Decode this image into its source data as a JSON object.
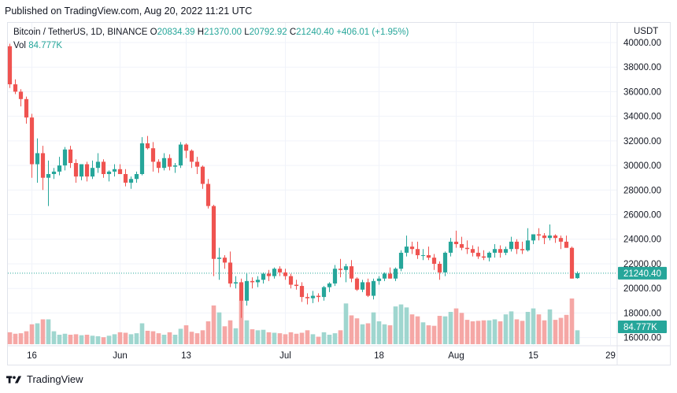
{
  "header": {
    "published": "Published on TradingView.com, Aug 20, 2022 11:21 UTC"
  },
  "legend": {
    "symbol": "Bitcoin / TetherUS, 1D, BINANCE",
    "o_label": "O",
    "o": "20834.39",
    "h_label": "H",
    "h": "21370.00",
    "l_label": "L",
    "l": "20792.92",
    "c_label": "C",
    "c": "21240.40",
    "change": "+406.01 (+1.95%)",
    "vol_label": "Vol",
    "vol": "84.777K"
  },
  "footer": {
    "brand": "TradingView"
  },
  "colors": {
    "up": "#26a69a",
    "down": "#ef5350",
    "up_vol": "#9fd6cf",
    "down_vol": "#f5a7a5",
    "grid": "#f0f3fa",
    "price_tag": "#26a69a"
  },
  "chart_data": {
    "type": "candlestick",
    "currency_label": "USDT",
    "y_ticks": [
      "40000.00",
      "38000.00",
      "36000.00",
      "34000.00",
      "32000.00",
      "30000.00",
      "28000.00",
      "26000.00",
      "24000.00",
      "22000.00",
      "20000.00",
      "18000.00",
      "16000.00"
    ],
    "ylim": [
      15400,
      41600
    ],
    "x_ticks": [
      {
        "label": "16",
        "index": 4
      },
      {
        "label": "Jun",
        "index": 20
      },
      {
        "label": "13",
        "index": 32
      },
      {
        "label": "Jul",
        "index": 50
      },
      {
        "label": "18",
        "index": 67
      },
      {
        "label": "Aug",
        "index": 81
      },
      {
        "label": "15",
        "index": 95
      },
      {
        "label": "29",
        "index": 109
      }
    ],
    "last_price_label": "21240.40",
    "last_price": 21240.4,
    "volume_tag": "84.777K",
    "candles": [
      {
        "o": 39700,
        "h": 39900,
        "l": 36300,
        "c": 36600,
        "v": 120
      },
      {
        "o": 36600,
        "h": 37000,
        "l": 35800,
        "c": 36000,
        "v": 105
      },
      {
        "o": 36000,
        "h": 36200,
        "l": 34800,
        "c": 35400,
        "v": 110
      },
      {
        "o": 35400,
        "h": 35600,
        "l": 33400,
        "c": 33900,
        "v": 130
      },
      {
        "o": 33900,
        "h": 34200,
        "l": 29000,
        "c": 30100,
        "v": 200
      },
      {
        "o": 30100,
        "h": 32200,
        "l": 28600,
        "c": 31000,
        "v": 210
      },
      {
        "o": 31000,
        "h": 31600,
        "l": 28000,
        "c": 29000,
        "v": 250
      },
      {
        "o": 29000,
        "h": 30400,
        "l": 26700,
        "c": 29300,
        "v": 250
      },
      {
        "o": 29300,
        "h": 29800,
        "l": 28900,
        "c": 29500,
        "v": 130
      },
      {
        "o": 29500,
        "h": 30700,
        "l": 29200,
        "c": 30000,
        "v": 95
      },
      {
        "o": 30000,
        "h": 31500,
        "l": 29600,
        "c": 31300,
        "v": 105
      },
      {
        "o": 31300,
        "h": 31600,
        "l": 29800,
        "c": 30200,
        "v": 95
      },
      {
        "o": 30200,
        "h": 30500,
        "l": 28600,
        "c": 29100,
        "v": 100
      },
      {
        "o": 29100,
        "h": 30100,
        "l": 28800,
        "c": 30100,
        "v": 90
      },
      {
        "o": 30100,
        "h": 30300,
        "l": 28700,
        "c": 29100,
        "v": 95
      },
      {
        "o": 29100,
        "h": 30400,
        "l": 28900,
        "c": 29800,
        "v": 85
      },
      {
        "o": 29800,
        "h": 31000,
        "l": 29400,
        "c": 30300,
        "v": 80
      },
      {
        "o": 30300,
        "h": 30500,
        "l": 29000,
        "c": 29300,
        "v": 70
      },
      {
        "o": 29300,
        "h": 29600,
        "l": 28700,
        "c": 29500,
        "v": 85
      },
      {
        "o": 29500,
        "h": 30100,
        "l": 29100,
        "c": 29700,
        "v": 100
      },
      {
        "o": 29700,
        "h": 30100,
        "l": 29300,
        "c": 29300,
        "v": 120
      },
      {
        "o": 29300,
        "h": 29700,
        "l": 28300,
        "c": 28600,
        "v": 115
      },
      {
        "o": 28600,
        "h": 29100,
        "l": 28100,
        "c": 28900,
        "v": 100
      },
      {
        "o": 28900,
        "h": 29500,
        "l": 28600,
        "c": 29300,
        "v": 110
      },
      {
        "o": 29300,
        "h": 32300,
        "l": 29200,
        "c": 31800,
        "v": 210
      },
      {
        "o": 31800,
        "h": 32400,
        "l": 31300,
        "c": 31400,
        "v": 135
      },
      {
        "o": 31400,
        "h": 31900,
        "l": 29500,
        "c": 30300,
        "v": 130
      },
      {
        "o": 30300,
        "h": 30500,
        "l": 29400,
        "c": 29800,
        "v": 110
      },
      {
        "o": 29800,
        "h": 31000,
        "l": 29600,
        "c": 30600,
        "v": 95
      },
      {
        "o": 30600,
        "h": 30900,
        "l": 29600,
        "c": 29900,
        "v": 120
      },
      {
        "o": 29900,
        "h": 30200,
        "l": 29400,
        "c": 30000,
        "v": 95
      },
      {
        "o": 30000,
        "h": 31900,
        "l": 29800,
        "c": 31700,
        "v": 155
      },
      {
        "o": 31700,
        "h": 31800,
        "l": 30600,
        "c": 31200,
        "v": 190
      },
      {
        "o": 31200,
        "h": 31300,
        "l": 29800,
        "c": 30300,
        "v": 125
      },
      {
        "o": 30300,
        "h": 30700,
        "l": 29300,
        "c": 29900,
        "v": 110
      },
      {
        "o": 29900,
        "h": 30000,
        "l": 28100,
        "c": 28500,
        "v": 140
      },
      {
        "o": 28500,
        "h": 28900,
        "l": 26500,
        "c": 26700,
        "v": 230
      },
      {
        "o": 26700,
        "h": 26800,
        "l": 21000,
        "c": 22400,
        "v": 390
      },
      {
        "o": 22400,
        "h": 23300,
        "l": 20700,
        "c": 22500,
        "v": 320
      },
      {
        "o": 22500,
        "h": 22700,
        "l": 21600,
        "c": 22100,
        "v": 180
      },
      {
        "o": 22100,
        "h": 23000,
        "l": 20100,
        "c": 20400,
        "v": 240
      },
      {
        "o": 20400,
        "h": 21000,
        "l": 20000,
        "c": 20500,
        "v": 160
      },
      {
        "o": 20500,
        "h": 20800,
        "l": 17600,
        "c": 19000,
        "v": 440
      },
      {
        "o": 19000,
        "h": 21200,
        "l": 18600,
        "c": 20600,
        "v": 240
      },
      {
        "o": 20600,
        "h": 20900,
        "l": 20000,
        "c": 20500,
        "v": 150
      },
      {
        "o": 20500,
        "h": 21000,
        "l": 20100,
        "c": 20700,
        "v": 140
      },
      {
        "o": 20700,
        "h": 21300,
        "l": 20400,
        "c": 21200,
        "v": 145
      },
      {
        "o": 21200,
        "h": 21500,
        "l": 20600,
        "c": 21000,
        "v": 120
      },
      {
        "o": 21000,
        "h": 21700,
        "l": 20800,
        "c": 21600,
        "v": 115
      },
      {
        "o": 21600,
        "h": 21800,
        "l": 21000,
        "c": 21300,
        "v": 110
      },
      {
        "o": 21300,
        "h": 21600,
        "l": 20700,
        "c": 21000,
        "v": 100
      },
      {
        "o": 21000,
        "h": 21200,
        "l": 20000,
        "c": 20300,
        "v": 120
      },
      {
        "o": 20300,
        "h": 20700,
        "l": 19900,
        "c": 20200,
        "v": 105
      },
      {
        "o": 20200,
        "h": 20500,
        "l": 18900,
        "c": 19300,
        "v": 115
      },
      {
        "o": 19300,
        "h": 19600,
        "l": 18700,
        "c": 19200,
        "v": 140
      },
      {
        "o": 19200,
        "h": 19800,
        "l": 18800,
        "c": 19400,
        "v": 100
      },
      {
        "o": 19400,
        "h": 19600,
        "l": 18900,
        "c": 19300,
        "v": 75
      },
      {
        "o": 19300,
        "h": 20200,
        "l": 19000,
        "c": 20100,
        "v": 120
      },
      {
        "o": 20100,
        "h": 20500,
        "l": 19700,
        "c": 20400,
        "v": 95
      },
      {
        "o": 20400,
        "h": 21900,
        "l": 20200,
        "c": 21600,
        "v": 110
      },
      {
        "o": 21600,
        "h": 22400,
        "l": 20900,
        "c": 21500,
        "v": 140
      },
      {
        "o": 21500,
        "h": 22000,
        "l": 20500,
        "c": 21800,
        "v": 410
      },
      {
        "o": 21800,
        "h": 22300,
        "l": 20500,
        "c": 20800,
        "v": 290
      },
      {
        "o": 20800,
        "h": 20900,
        "l": 19800,
        "c": 19900,
        "v": 260
      },
      {
        "o": 19900,
        "h": 20700,
        "l": 19700,
        "c": 20500,
        "v": 200
      },
      {
        "o": 20500,
        "h": 20800,
        "l": 19300,
        "c": 19400,
        "v": 210
      },
      {
        "o": 19400,
        "h": 20800,
        "l": 19100,
        "c": 20600,
        "v": 320
      },
      {
        "o": 20600,
        "h": 21000,
        "l": 20300,
        "c": 20800,
        "v": 230
      },
      {
        "o": 20800,
        "h": 21300,
        "l": 20600,
        "c": 21200,
        "v": 200
      },
      {
        "o": 21200,
        "h": 21700,
        "l": 20800,
        "c": 20800,
        "v": 190
      },
      {
        "o": 20800,
        "h": 21700,
        "l": 20600,
        "c": 21600,
        "v": 380
      },
      {
        "o": 21600,
        "h": 23100,
        "l": 21400,
        "c": 22900,
        "v": 400
      },
      {
        "o": 22900,
        "h": 24300,
        "l": 22600,
        "c": 23400,
        "v": 370
      },
      {
        "o": 23400,
        "h": 23800,
        "l": 22800,
        "c": 23200,
        "v": 300
      },
      {
        "o": 23200,
        "h": 23800,
        "l": 22400,
        "c": 22700,
        "v": 280
      },
      {
        "o": 22700,
        "h": 23200,
        "l": 22300,
        "c": 22700,
        "v": 220
      },
      {
        "o": 22700,
        "h": 23400,
        "l": 22300,
        "c": 22500,
        "v": 190
      },
      {
        "o": 22500,
        "h": 22800,
        "l": 21500,
        "c": 22000,
        "v": 185
      },
      {
        "o": 22000,
        "h": 22200,
        "l": 20700,
        "c": 21300,
        "v": 285
      },
      {
        "o": 21300,
        "h": 23000,
        "l": 21000,
        "c": 22900,
        "v": 280
      },
      {
        "o": 22900,
        "h": 24100,
        "l": 22600,
        "c": 23800,
        "v": 325
      },
      {
        "o": 23800,
        "h": 24700,
        "l": 23300,
        "c": 23600,
        "v": 360
      },
      {
        "o": 23600,
        "h": 24200,
        "l": 23100,
        "c": 23300,
        "v": 315
      },
      {
        "o": 23300,
        "h": 23900,
        "l": 22800,
        "c": 23200,
        "v": 245
      },
      {
        "o": 23200,
        "h": 23500,
        "l": 22600,
        "c": 22900,
        "v": 230
      },
      {
        "o": 22900,
        "h": 23400,
        "l": 22400,
        "c": 22600,
        "v": 235
      },
      {
        "o": 22600,
        "h": 23100,
        "l": 22300,
        "c": 22500,
        "v": 240
      },
      {
        "o": 22500,
        "h": 23000,
        "l": 22200,
        "c": 22900,
        "v": 240
      },
      {
        "o": 22900,
        "h": 23600,
        "l": 22500,
        "c": 23200,
        "v": 250
      },
      {
        "o": 23200,
        "h": 23500,
        "l": 22500,
        "c": 22900,
        "v": 230
      },
      {
        "o": 22900,
        "h": 23400,
        "l": 22700,
        "c": 23200,
        "v": 300
      },
      {
        "o": 23200,
        "h": 24200,
        "l": 23000,
        "c": 23800,
        "v": 330
      },
      {
        "o": 23800,
        "h": 24000,
        "l": 22800,
        "c": 23200,
        "v": 250
      },
      {
        "o": 23200,
        "h": 23800,
        "l": 22800,
        "c": 23100,
        "v": 235
      },
      {
        "o": 23100,
        "h": 24900,
        "l": 23000,
        "c": 23900,
        "v": 325
      },
      {
        "o": 23900,
        "h": 24400,
        "l": 23600,
        "c": 24400,
        "v": 360
      },
      {
        "o": 24400,
        "h": 24900,
        "l": 23900,
        "c": 24300,
        "v": 300
      },
      {
        "o": 24300,
        "h": 24500,
        "l": 23600,
        "c": 24100,
        "v": 240
      },
      {
        "o": 24100,
        "h": 25200,
        "l": 23900,
        "c": 24300,
        "v": 350
      },
      {
        "o": 24300,
        "h": 24400,
        "l": 23700,
        "c": 24100,
        "v": 245
      },
      {
        "o": 24100,
        "h": 24300,
        "l": 23200,
        "c": 23800,
        "v": 265
      },
      {
        "o": 23800,
        "h": 24300,
        "l": 23300,
        "c": 23300,
        "v": 295
      },
      {
        "o": 23300,
        "h": 23400,
        "l": 20800,
        "c": 20800,
        "v": 460
      },
      {
        "o": 20834.39,
        "h": 21370,
        "l": 20792.92,
        "c": 21240.4,
        "v": 140
      }
    ]
  }
}
